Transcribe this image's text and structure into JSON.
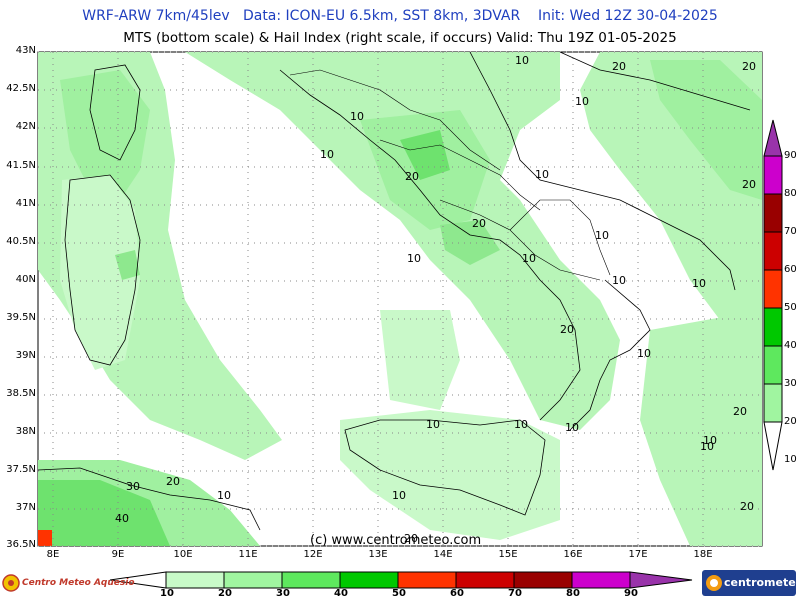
{
  "title_line1": "WRF-ARW 7km/45lev   Data: ICON-EU 6.5km, SST 8km, 3DVAR    Init: Wed 12Z 30-04-2025",
  "title_line2": "MTS (bottom scale) & Hail Index (right scale, if occurs) Valid: Thu 19Z 01-05-2025",
  "lat_labels": [
    "43N",
    "42.5N",
    "42N",
    "41.5N",
    "41N",
    "40.5N",
    "40N",
    "39.5N",
    "39N",
    "38.5N",
    "38N",
    "37.5N",
    "37N",
    "36.5N"
  ],
  "lon_labels": [
    "8E",
    "9E",
    "10E",
    "11E",
    "12E",
    "13E",
    "14E",
    "15E",
    "16E",
    "17E",
    "18E"
  ],
  "contour_labels": [
    {
      "text": "20",
      "id": "c1"
    },
    {
      "text": "20",
      "id": "c2"
    },
    {
      "text": "10",
      "id": "c3"
    },
    {
      "text": "10",
      "id": "c4"
    },
    {
      "text": "10",
      "id": "c5"
    },
    {
      "text": "20",
      "id": "c6"
    },
    {
      "text": "10",
      "id": "c7"
    },
    {
      "text": "20",
      "id": "c8"
    },
    {
      "text": "20",
      "id": "c9"
    },
    {
      "text": "10",
      "id": "c10"
    },
    {
      "text": "10",
      "id": "c11"
    },
    {
      "text": "10",
      "id": "c12"
    },
    {
      "text": "10",
      "id": "c13"
    },
    {
      "text": "20",
      "id": "c14"
    },
    {
      "text": "10",
      "id": "c15"
    },
    {
      "text": "10",
      "id": "c16"
    },
    {
      "text": "10",
      "id": "c17"
    },
    {
      "text": "10",
      "id": "c18"
    },
    {
      "text": "20",
      "id": "c19"
    },
    {
      "text": "10",
      "id": "c20"
    },
    {
      "text": "10",
      "id": "c21"
    },
    {
      "text": "30",
      "id": "c22"
    },
    {
      "text": "20",
      "id": "c23"
    },
    {
      "text": "40",
      "id": "c24"
    },
    {
      "text": "10",
      "id": "c25"
    },
    {
      "text": "10",
      "id": "c26"
    },
    {
      "text": "20",
      "id": "c27"
    },
    {
      "text": "10",
      "id": "c28"
    },
    {
      "text": "10",
      "id": "c29"
    },
    {
      "text": "20",
      "id": "c30"
    }
  ],
  "copyright": "(c) www.centrometeo.com",
  "hail_scale_labels": [
    "90",
    "80",
    "70",
    "60",
    "50",
    "40",
    "30",
    "20",
    "10"
  ],
  "mts_scale_labels": [
    "10",
    "20",
    "30",
    "40",
    "50",
    "60",
    "70",
    "80",
    "90"
  ],
  "scale_colors": [
    "#c8fac8",
    "#a0f5a0",
    "#5ee85e",
    "#00c800",
    "#ff3300",
    "#cc0000",
    "#990000",
    "#cc00cc",
    "#9933aa"
  ],
  "logo_left_text": "Centro Meteo Aquesio",
  "logo_right_text": "centrometeo"
}
